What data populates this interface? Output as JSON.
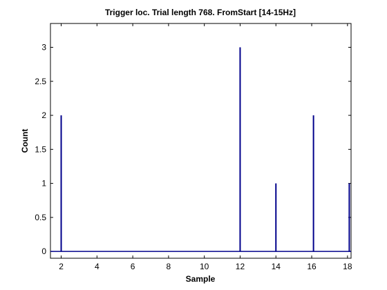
{
  "chart_data": {
    "type": "bar",
    "title": "Trigger loc. Trial length  768. FromStart [14-15Hz]",
    "xlabel": "Sample",
    "ylabel": "Count",
    "xlim": [
      1.4,
      18.2
    ],
    "ylim": [
      -0.1,
      3.35
    ],
    "xticks": [
      2,
      4,
      6,
      8,
      10,
      12,
      14,
      16,
      18
    ],
    "xtick_labels": [
      "2",
      "4",
      "6",
      "8",
      "10",
      "12",
      "14",
      "16",
      "18"
    ],
    "yticks": [
      0,
      0.5,
      1,
      1.5,
      2,
      2.5,
      3
    ],
    "ytick_labels": [
      "0",
      "0.5",
      "1",
      "1.5",
      "2",
      "2.5",
      "3"
    ],
    "grid": false,
    "bar_color": "#00008b",
    "x": [
      2,
      12,
      14,
      16.1,
      18.1
    ],
    "values": [
      2,
      3,
      1,
      2,
      1
    ]
  }
}
